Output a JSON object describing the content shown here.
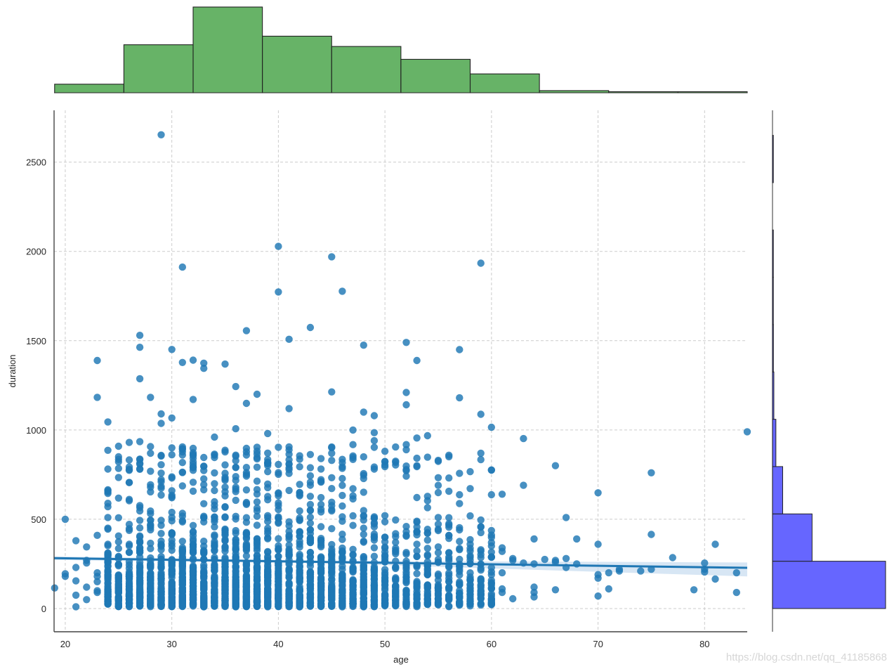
{
  "chart_data": {
    "type": "scatter",
    "kind": "jointplot-reg",
    "title": "",
    "xlabel": "age",
    "ylabel": "duration",
    "xlim": [
      18.95,
      84
    ],
    "ylim": [
      -130,
      2790
    ],
    "xticks": [
      20,
      30,
      40,
      50,
      60,
      70,
      80
    ],
    "yticks": [
      0,
      500,
      1000,
      1500,
      2000,
      2500
    ],
    "grid": true,
    "grid_style": "dashed",
    "colors": {
      "scatter": "#1f77b4",
      "regression_line": "#1f77b4",
      "ci_band": "#c6dbef",
      "top_hist": "#4ca64c",
      "right_hist": "#5555ff",
      "edge": "#222222"
    },
    "regression": {
      "x": [
        18.95,
        84
      ],
      "y": [
        282,
        228
      ],
      "ci_low_at_end": [
        272,
        180
      ],
      "ci_high_at_end": [
        292,
        258
      ]
    },
    "scatter_outliers": [
      {
        "x": 29,
        "y": 2653
      },
      {
        "x": 40,
        "y": 2028
      },
      {
        "x": 45,
        "y": 1970
      },
      {
        "x": 59,
        "y": 1934
      },
      {
        "x": 31,
        "y": 1912
      },
      {
        "x": 46,
        "y": 1777
      },
      {
        "x": 40,
        "y": 1773
      },
      {
        "x": 43,
        "y": 1574
      },
      {
        "x": 37,
        "y": 1556
      },
      {
        "x": 27,
        "y": 1530
      },
      {
        "x": 41,
        "y": 1508
      },
      {
        "x": 52,
        "y": 1490
      },
      {
        "x": 48,
        "y": 1475
      },
      {
        "x": 27,
        "y": 1463
      },
      {
        "x": 30,
        "y": 1451
      },
      {
        "x": 57,
        "y": 1450
      },
      {
        "x": 23,
        "y": 1389
      },
      {
        "x": 32,
        "y": 1391
      },
      {
        "x": 31,
        "y": 1378
      },
      {
        "x": 33,
        "y": 1374
      },
      {
        "x": 35,
        "y": 1369
      },
      {
        "x": 53,
        "y": 1389
      },
      {
        "x": 33,
        "y": 1345
      },
      {
        "x": 27,
        "y": 1287
      },
      {
        "x": 36,
        "y": 1243
      },
      {
        "x": 45,
        "y": 1213
      },
      {
        "x": 52,
        "y": 1210
      },
      {
        "x": 38,
        "y": 1200
      },
      {
        "x": 23,
        "y": 1183
      },
      {
        "x": 28,
        "y": 1183
      },
      {
        "x": 57,
        "y": 1180
      },
      {
        "x": 32,
        "y": 1171
      },
      {
        "x": 37,
        "y": 1149
      },
      {
        "x": 52,
        "y": 1141
      },
      {
        "x": 41,
        "y": 1120
      },
      {
        "x": 48,
        "y": 1100
      },
      {
        "x": 29,
        "y": 1090
      },
      {
        "x": 59,
        "y": 1088
      },
      {
        "x": 49,
        "y": 1080
      },
      {
        "x": 30,
        "y": 1067
      },
      {
        "x": 24,
        "y": 1045
      },
      {
        "x": 29,
        "y": 1037
      },
      {
        "x": 60,
        "y": 1015
      },
      {
        "x": 36,
        "y": 1007
      },
      {
        "x": 47,
        "y": 1000
      },
      {
        "x": 84,
        "y": 990
      },
      {
        "x": 49,
        "y": 985
      },
      {
        "x": 39,
        "y": 980
      },
      {
        "x": 54,
        "y": 968
      },
      {
        "x": 34,
        "y": 960
      },
      {
        "x": 53,
        "y": 955
      },
      {
        "x": 63,
        "y": 952
      },
      {
        "x": 49,
        "y": 940
      },
      {
        "x": 26,
        "y": 930
      },
      {
        "x": 27,
        "y": 935
      },
      {
        "x": 52,
        "y": 918
      },
      {
        "x": 47,
        "y": 918
      },
      {
        "x": 45,
        "y": 870
      },
      {
        "x": 53,
        "y": 800
      },
      {
        "x": 66,
        "y": 800
      },
      {
        "x": 55,
        "y": 830
      },
      {
        "x": 75,
        "y": 760
      },
      {
        "x": 63,
        "y": 690
      },
      {
        "x": 70,
        "y": 648
      },
      {
        "x": 61,
        "y": 640
      },
      {
        "x": 67,
        "y": 510
      },
      {
        "x": 20,
        "y": 500
      },
      {
        "x": 75,
        "y": 415
      },
      {
        "x": 68,
        "y": 390
      },
      {
        "x": 81,
        "y": 360
      },
      {
        "x": 70,
        "y": 360
      },
      {
        "x": 77,
        "y": 285
      },
      {
        "x": 80,
        "y": 255
      },
      {
        "x": 74,
        "y": 210
      },
      {
        "x": 72,
        "y": 210
      },
      {
        "x": 79,
        "y": 105
      },
      {
        "x": 83,
        "y": 90
      },
      {
        "x": 81,
        "y": 165
      },
      {
        "x": 70,
        "y": 70
      },
      {
        "x": 19,
        "y": 115
      },
      {
        "x": 21,
        "y": 10
      },
      {
        "x": 62,
        "y": 55
      },
      {
        "x": 66,
        "y": 105
      }
    ],
    "scatter_dense_columns": {
      "x_range": [
        24,
        60
      ],
      "y_range_dense": [
        0,
        500
      ],
      "note": "near-continuous vertical stacks of points at each integer age from 24 to 60"
    },
    "top_histogram": {
      "variable": "age",
      "bin_edges": [
        19,
        25.5,
        32,
        38.5,
        45,
        51.5,
        58,
        64.5,
        71,
        77.5,
        84
      ],
      "relative_heights": [
        0.1,
        0.56,
        1.0,
        0.66,
        0.54,
        0.39,
        0.22,
        0.025,
        0.01,
        0.01
      ]
    },
    "right_histogram": {
      "variable": "duration",
      "bin_edges": [
        0,
        265,
        530,
        795,
        1060,
        1325,
        1590,
        1855,
        2120,
        2385,
        2650
      ],
      "relative_widths": [
        1.0,
        0.35,
        0.09,
        0.03,
        0.012,
        0.008,
        0.004,
        0.004,
        0.0,
        0.002
      ]
    }
  },
  "watermark": "https://blog.csdn.net/qq_41185868"
}
